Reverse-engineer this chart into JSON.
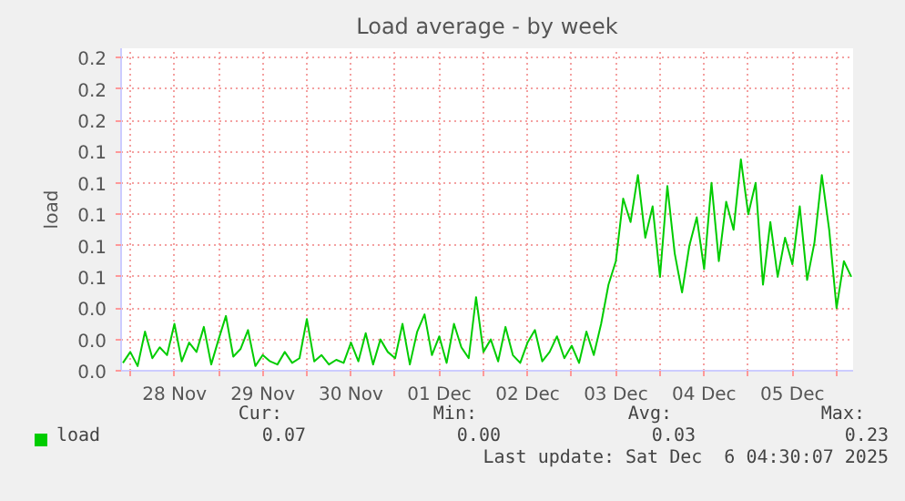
{
  "chart_data": {
    "type": "line",
    "title": "Load average - by week",
    "ylabel": "load",
    "series": [
      {
        "name": "load",
        "color": "#00cc00",
        "x": [
          "2025-11-27T22:00",
          "2025-11-28T00:00",
          "2025-11-28T02:00",
          "2025-11-28T04:00",
          "2025-11-28T06:00",
          "2025-11-28T08:00",
          "2025-11-28T10:00",
          "2025-11-28T12:00",
          "2025-11-28T14:00",
          "2025-11-28T16:00",
          "2025-11-28T18:00",
          "2025-11-28T20:00",
          "2025-11-28T22:00",
          "2025-11-29T00:00",
          "2025-11-29T02:00",
          "2025-11-29T04:00",
          "2025-11-29T06:00",
          "2025-11-29T08:00",
          "2025-11-29T10:00",
          "2025-11-29T12:00",
          "2025-11-29T14:00",
          "2025-11-29T16:00",
          "2025-11-29T18:00",
          "2025-11-29T20:00",
          "2025-11-29T22:00",
          "2025-11-30T00:00",
          "2025-11-30T02:00",
          "2025-11-30T04:00",
          "2025-11-30T06:00",
          "2025-11-30T08:00",
          "2025-11-30T10:00",
          "2025-11-30T12:00",
          "2025-11-30T14:00",
          "2025-11-30T16:00",
          "2025-11-30T18:00",
          "2025-11-30T20:00",
          "2025-11-30T22:00",
          "2025-12-01T00:00",
          "2025-12-01T02:00",
          "2025-12-01T04:00",
          "2025-12-01T06:00",
          "2025-12-01T08:00",
          "2025-12-01T10:00",
          "2025-12-01T12:00",
          "2025-12-01T14:00",
          "2025-12-01T16:00",
          "2025-12-01T18:00",
          "2025-12-01T20:00",
          "2025-12-01T22:00",
          "2025-12-02T00:00",
          "2025-12-02T02:00",
          "2025-12-02T04:00",
          "2025-12-02T06:00",
          "2025-12-02T08:00",
          "2025-12-02T10:00",
          "2025-12-02T12:00",
          "2025-12-02T14:00",
          "2025-12-02T16:00",
          "2025-12-02T18:00",
          "2025-12-02T20:00",
          "2025-12-02T22:00",
          "2025-12-03T00:00",
          "2025-12-03T02:00",
          "2025-12-03T04:00",
          "2025-12-03T06:00",
          "2025-12-03T08:00",
          "2025-12-03T10:00",
          "2025-12-03T12:00",
          "2025-12-03T14:00",
          "2025-12-03T16:00",
          "2025-12-03T18:00",
          "2025-12-03T20:00",
          "2025-12-03T22:00",
          "2025-12-04T00:00",
          "2025-12-04T02:00",
          "2025-12-04T04:00",
          "2025-12-04T06:00",
          "2025-12-04T08:00",
          "2025-12-04T10:00",
          "2025-12-04T12:00",
          "2025-12-04T14:00",
          "2025-12-04T16:00",
          "2025-12-04T18:00",
          "2025-12-04T20:00",
          "2025-12-04T22:00",
          "2025-12-05T00:00",
          "2025-12-05T02:00",
          "2025-12-05T04:00",
          "2025-12-05T06:00",
          "2025-12-05T08:00",
          "2025-12-05T10:00",
          "2025-12-05T12:00",
          "2025-12-05T14:00",
          "2025-12-05T16:00",
          "2025-12-05T18:00",
          "2025-12-05T20:00",
          "2025-12-05T22:00",
          "2025-12-06T00:00",
          "2025-12-06T02:00",
          "2025-12-06T04:00"
        ],
        "values": [
          0.005,
          0.012,
          0.003,
          0.025,
          0.008,
          0.015,
          0.01,
          0.03,
          0.006,
          0.018,
          0.012,
          0.028,
          0.004,
          0.02,
          0.035,
          0.009,
          0.014,
          0.026,
          0.003,
          0.01,
          0.006,
          0.004,
          0.012,
          0.005,
          0.008,
          0.033,
          0.006,
          0.01,
          0.004,
          0.007,
          0.005,
          0.018,
          0.006,
          0.024,
          0.004,
          0.02,
          0.012,
          0.008,
          0.03,
          0.004,
          0.025,
          0.036,
          0.01,
          0.022,
          0.005,
          0.03,
          0.015,
          0.008,
          0.047,
          0.012,
          0.02,
          0.006,
          0.028,
          0.01,
          0.005,
          0.018,
          0.026,
          0.006,
          0.012,
          0.022,
          0.008,
          0.016,
          0.005,
          0.025,
          0.01,
          0.03,
          0.055,
          0.07,
          0.11,
          0.095,
          0.125,
          0.085,
          0.105,
          0.06,
          0.118,
          0.075,
          0.05,
          0.08,
          0.098,
          0.065,
          0.12,
          0.07,
          0.108,
          0.09,
          0.135,
          0.1,
          0.12,
          0.055,
          0.095,
          0.06,
          0.085,
          0.068,
          0.105,
          0.058,
          0.082,
          0.125,
          0.09,
          0.04,
          0.07,
          0.06
        ]
      }
    ],
    "xlim": [
      "2025-11-27T21:30",
      "2025-12-06T04:30"
    ],
    "xticks": [
      {
        "value": "2025-11-28T00:00",
        "label": null
      },
      {
        "value": "2025-11-28T12:00",
        "label": "28 Nov"
      },
      {
        "value": "2025-11-29T00:00",
        "label": null
      },
      {
        "value": "2025-11-29T12:00",
        "label": "29 Nov"
      },
      {
        "value": "2025-11-30T00:00",
        "label": null
      },
      {
        "value": "2025-11-30T12:00",
        "label": "30 Nov"
      },
      {
        "value": "2025-12-01T00:00",
        "label": null
      },
      {
        "value": "2025-12-01T12:00",
        "label": "01 Dec"
      },
      {
        "value": "2025-12-02T00:00",
        "label": null
      },
      {
        "value": "2025-12-02T12:00",
        "label": "02 Dec"
      },
      {
        "value": "2025-12-03T00:00",
        "label": null
      },
      {
        "value": "2025-12-03T12:00",
        "label": "03 Dec"
      },
      {
        "value": "2025-12-04T00:00",
        "label": null
      },
      {
        "value": "2025-12-04T12:00",
        "label": "04 Dec"
      },
      {
        "value": "2025-12-05T00:00",
        "label": null
      },
      {
        "value": "2025-12-05T12:00",
        "label": "05 Dec"
      },
      {
        "value": "2025-12-06T00:00",
        "label": null
      }
    ],
    "ylim": [
      0,
      0.206
    ],
    "yticks": [
      {
        "value": 0,
        "label": "0.0"
      },
      {
        "value": 0.02,
        "label": "0.0"
      },
      {
        "value": 0.04,
        "label": "0.0"
      },
      {
        "value": 0.06,
        "label": "0.1"
      },
      {
        "value": 0.08,
        "label": "0.1"
      },
      {
        "value": 0.1,
        "label": "0.1"
      },
      {
        "value": 0.12,
        "label": "0.1"
      },
      {
        "value": 0.14,
        "label": "0.1"
      },
      {
        "value": 0.16,
        "label": "0.2"
      },
      {
        "value": 0.18,
        "label": "0.2"
      },
      {
        "value": 0.2,
        "label": "0.2"
      }
    ],
    "grid": true,
    "legend": "bottom left",
    "marker": "none",
    "line_style": "solid",
    "annotations": [
      "Cur:",
      "0.07",
      "Min:",
      "0.00",
      "Avg:",
      "0.03",
      "Max:",
      "0.23",
      "Last update: Sat Dec  6 04:30:07 2025"
    ]
  }
}
